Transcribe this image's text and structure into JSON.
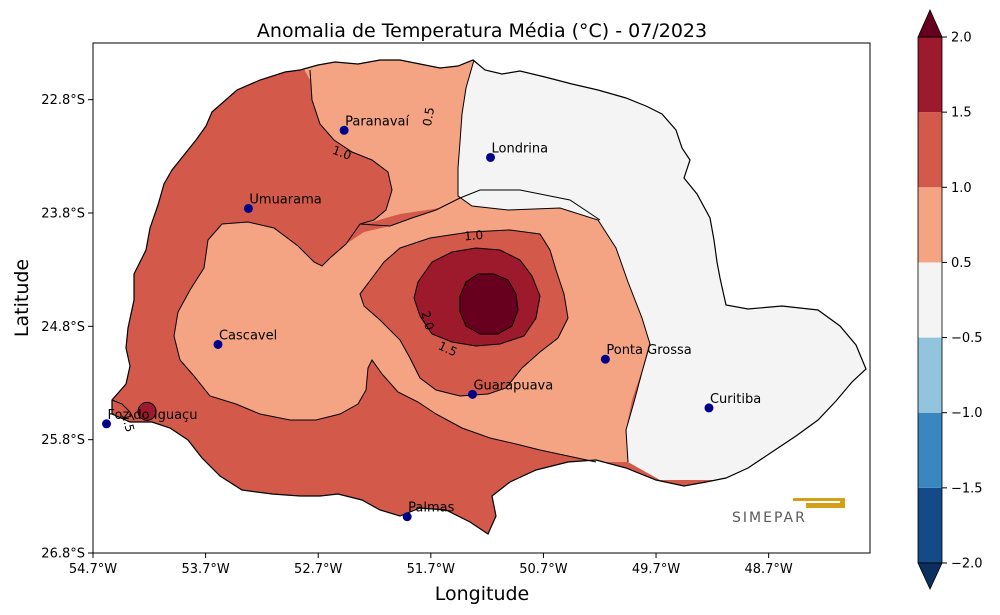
{
  "chart_data": {
    "type": "heatmap",
    "title": "Anomalia de Temperatura Média (°C) - 07/2023",
    "xlabel": "Longitude",
    "ylabel": "Latitude",
    "xlim": [
      -54.7,
      -47.8
    ],
    "ylim": [
      -26.8,
      -22.3
    ],
    "x_ticks": [
      {
        "value": -54.7,
        "label": "54.7°W"
      },
      {
        "value": -53.7,
        "label": "53.7°W"
      },
      {
        "value": -52.7,
        "label": "52.7°W"
      },
      {
        "value": -51.7,
        "label": "51.7°W"
      },
      {
        "value": -50.7,
        "label": "50.7°W"
      },
      {
        "value": -49.7,
        "label": "49.7°W"
      },
      {
        "value": -48.7,
        "label": "48.7°W"
      }
    ],
    "y_ticks": [
      {
        "value": -22.8,
        "label": "22.8°S"
      },
      {
        "value": -23.8,
        "label": "23.8°S"
      },
      {
        "value": -24.8,
        "label": "24.8°S"
      },
      {
        "value": -25.8,
        "label": "25.8°S"
      },
      {
        "value": -26.8,
        "label": "26.8°S"
      }
    ],
    "colorbar": {
      "levels": [
        -2.0,
        -1.5,
        -1.0,
        -0.5,
        0.5,
        1.0,
        1.5,
        2.0
      ],
      "labels": [
        "−2.0",
        "−1.5",
        "−1.0",
        "−0.5",
        "0.5",
        "1.0",
        "1.5",
        "2.0"
      ],
      "colors": [
        "#144a88",
        "#3a87c0",
        "#93c4de",
        "#f4f4f4",
        "#f4a482",
        "#d35a4a",
        "#9c1a2c"
      ],
      "under_color": "#0b2f5e",
      "over_color": "#67001f",
      "extend": "both"
    },
    "contour_labels": [
      {
        "text": "0.5",
        "lon": -51.72,
        "lat": -22.95,
        "rotation": -80
      },
      {
        "text": "1.0",
        "lon": -52.49,
        "lat": -23.27,
        "rotation": 20
      },
      {
        "text": "1.0",
        "lon": -51.32,
        "lat": -24.0,
        "rotation": -5
      },
      {
        "text": "2.0",
        "lon": -51.73,
        "lat": -24.75,
        "rotation": 75
      },
      {
        "text": "1.5",
        "lon": -51.55,
        "lat": -25.0,
        "rotation": 25
      },
      {
        "text": "1.5",
        "lon": -54.39,
        "lat": -25.65,
        "rotation": 75
      }
    ],
    "cities": [
      {
        "name": "Paranavaí",
        "lon": -52.47,
        "lat": -23.07
      },
      {
        "name": "Londrina",
        "lon": -51.17,
        "lat": -23.31
      },
      {
        "name": "Umuarama",
        "lon": -53.32,
        "lat": -23.76
      },
      {
        "name": "Cascavel",
        "lon": -53.59,
        "lat": -24.96
      },
      {
        "name": "Ponta Grossa",
        "lon": -50.15,
        "lat": -25.09
      },
      {
        "name": "Guarapuava",
        "lon": -51.33,
        "lat": -25.4
      },
      {
        "name": "Curitiba",
        "lon": -49.23,
        "lat": -25.52
      },
      {
        "name": "Foz do Iguaçu",
        "lon": -54.58,
        "lat": -25.66
      },
      {
        "name": "Palmas",
        "lon": -51.91,
        "lat": -26.48
      }
    ],
    "highlight_point": {
      "lon": -54.22,
      "lat": -25.55,
      "anomaly_class": "1.5–2.0"
    }
  },
  "logo": {
    "text": "SIMEPAR"
  }
}
